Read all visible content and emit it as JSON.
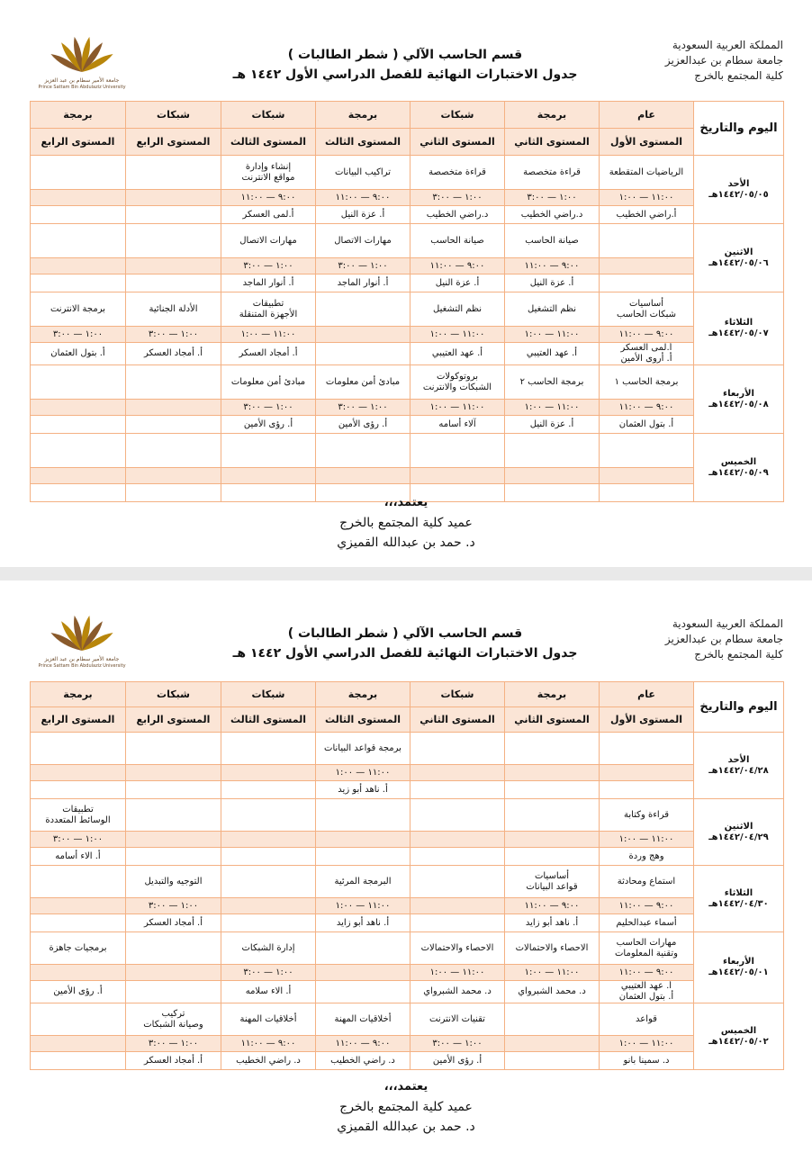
{
  "pages": [
    {
      "header": {
        "country": "المملكة العربية السعودية",
        "university": "جامعة سطام بن عبدالعزيز",
        "college": "كلية المجتمع بالخرج",
        "department": "قسم الحاسب الآلي ( شطر الطالبات )",
        "title": "جدول الاختبارات النهائية للفصل الدراسي الأول ١٤٤٢ هـ",
        "logo_ar": "جامعة الأمير سطام بن عبد العزيز",
        "logo_en": "Prince Sattam Bin Abdulaziz University"
      },
      "table": {
        "corner": "اليوم والتاريخ",
        "tracks": [
          "عام",
          "برمجة",
          "شبكات",
          "برمجة",
          "شبكات",
          "شبكات",
          "برمجة"
        ],
        "levels": [
          "المستوى الأول",
          "المستوى الثاني",
          "المستوى الثاني",
          "المستوى الثالث",
          "المستوى الثالث",
          "المستوى الرابع",
          "المستوى الرابع"
        ],
        "rows": [
          {
            "day": "الأحد",
            "date": "١٤٤٢/٠٥/٠٥هـ",
            "subjects": [
              "الرياضيات المتقطعة",
              "قراءة متخصصة",
              "قراءة متخصصة",
              "تراكيب البيانات",
              "إنشاء وإدارة\nمواقع الانترنت",
              null,
              null
            ],
            "times": [
              "١١:٠٠ — ١:٠٠",
              "١:٠٠ — ٣:٠٠",
              "١:٠٠ — ٣:٠٠",
              "٩:٠٠ — ١١:٠٠",
              "٩:٠٠ — ١١:٠٠",
              null,
              null
            ],
            "teachers": [
              "أ.راضي الخطيب",
              "د.راضي الخطيب",
              "د.راضي الخطيب",
              "أ. عزة النيل",
              "أ.لمى العسكر",
              null,
              null
            ]
          },
          {
            "day": "الاثنين",
            "date": "١٤٤٢/٠٥/٠٦هـ",
            "subjects": [
              null,
              "صيانة الحاسب",
              "صيانة الحاسب",
              "مهارات الاتصال",
              "مهارات الاتصال",
              null,
              null
            ],
            "times": [
              null,
              "٩:٠٠ — ١١:٠٠",
              "٩:٠٠ — ١١:٠٠",
              "١:٠٠ — ٣:٠٠",
              "١:٠٠ — ٣:٠٠",
              null,
              null
            ],
            "teachers": [
              null,
              "أ. عزة النيل",
              "أ. عزة النيل",
              "أ. أنوار الماجد",
              "أ. أنوار الماجد",
              null,
              null
            ]
          },
          {
            "day": "الثلاثاء",
            "date": "١٤٤٢/٠٥/٠٧هـ",
            "subjects": [
              "أساسيات\nشبكات الحاسب",
              "نظم التشغيل",
              "نظم التشغيل",
              null,
              "تطبيقات\nالأجهزة المتنقلة",
              "الأدلة الجنائية",
              "برمجة الانترنت"
            ],
            "times": [
              "٩:٠٠ — ١١:٠٠",
              "١١:٠٠ — ١:٠٠",
              "١١:٠٠ — ١:٠٠",
              null,
              "١١:٠٠ — ١:٠٠",
              "١:٠٠ — ٣:٠٠",
              "١:٠٠ — ٣:٠٠"
            ],
            "teachers": [
              "أ.لمى العسكر\nأ. أروى الأمين",
              "أ. عهد العتيبي",
              "أ. عهد العتيبي",
              null,
              "أ. أمجاد العسكر",
              "أ. أمجاد العسكر",
              "أ. بتول العثمان"
            ]
          },
          {
            "day": "الأربعاء",
            "date": "١٤٤٢/٠٥/٠٨هـ",
            "subjects": [
              "برمجة الحاسب ١",
              "برمجة الحاسب ٢",
              "بروتوكولات\nالشبكات والانترنت",
              "مبادئ أمن معلومات",
              "مبادئ أمن معلومات",
              null,
              null
            ],
            "times": [
              "٩:٠٠ — ١١:٠٠",
              "١١:٠٠ — ١:٠٠",
              "١١:٠٠ — ١:٠٠",
              "١:٠٠ — ٣:٠٠",
              "١:٠٠ — ٣:٠٠",
              null,
              null
            ],
            "teachers": [
              "أ. بتول العثمان",
              "أ. عزة النيل",
              "آلاء أسامه",
              "أ. رؤى الأمين",
              "أ. رؤى الأمين",
              null,
              null
            ]
          },
          {
            "day": "الخميس",
            "date": "١٤٤٢/٠٥/٠٩هـ",
            "subjects": [
              null,
              null,
              null,
              null,
              null,
              null,
              null
            ],
            "times": [
              null,
              null,
              null,
              null,
              null,
              null,
              null
            ],
            "teachers": [
              null,
              null,
              null,
              null,
              null,
              null,
              null
            ]
          }
        ]
      },
      "footer": {
        "approve": "يعتمد،،،",
        "dean": "عميد كلية المجتمع بالخرج",
        "name": "د. حمد بن عبدالله القميزي"
      }
    },
    {
      "header": {
        "country": "المملكة العربية السعودية",
        "university": "جامعة سطام بن عبدالعزيز",
        "college": "كلية المجتمع بالخرج",
        "department": "قسم الحاسب الآلي ( شطر الطالبات )",
        "title": "جدول الاختبارات النهائية للفصل الدراسي الأول ١٤٤٢ هـ",
        "logo_ar": "جامعة الأمير سطام بن عبد العزيز",
        "logo_en": "Prince Sattam Bin Abdulaziz University"
      },
      "table": {
        "corner": "اليوم والتاريخ",
        "tracks": [
          "عام",
          "برمجة",
          "شبكات",
          "برمجة",
          "شبكات",
          "شبكات",
          "برمجة"
        ],
        "levels": [
          "المستوى الأول",
          "المستوى الثاني",
          "المستوى الثاني",
          "المستوى الثالث",
          "المستوى الثالث",
          "المستوى الرابع",
          "المستوى الرابع"
        ],
        "rows": [
          {
            "day": "الأحد",
            "date": "١٤٤٢/٠٤/٢٨هـ",
            "subjects": [
              null,
              null,
              null,
              "برمجة قواعد البيانات",
              null,
              null,
              null
            ],
            "times": [
              null,
              null,
              null,
              "١١:٠٠ — ١:٠٠",
              null,
              null,
              null
            ],
            "teachers": [
              null,
              null,
              null,
              "أ. ناهد أبو زيد",
              null,
              null,
              null
            ]
          },
          {
            "day": "الاثنين",
            "date": "١٤٤٢/٠٤/٢٩هـ",
            "subjects": [
              "قراءة وكتابة",
              null,
              null,
              null,
              null,
              null,
              "تطبيقات\nالوسائط المتعددة"
            ],
            "times": [
              "١١:٠٠ — ١:٠٠",
              null,
              null,
              null,
              null,
              null,
              "١:٠٠ — ٣:٠٠"
            ],
            "teachers": [
              "وهج وردة",
              null,
              null,
              null,
              null,
              null,
              "أ. الاء أسامه"
            ]
          },
          {
            "day": "الثلاثاء",
            "date": "١٤٤٢/٠٤/٣٠هـ",
            "subjects": [
              "استماع ومحادثة",
              "أساسيات\nقواعد البيانات",
              null,
              "البرمجة المرئية",
              null,
              "التوجيه والتبديل",
              null
            ],
            "times": [
              "٩:٠٠ — ١١:٠٠",
              "٩:٠٠ — ١١:٠٠",
              null,
              "١١:٠٠ — ١:٠٠",
              null,
              "١:٠٠ — ٣:٠٠",
              null
            ],
            "teachers": [
              "أسماء عبدالحليم",
              "أ. ناهد أبو زايد",
              null,
              "أ. ناهد أبو زايد",
              null,
              "أ. أمجاد العسكر",
              null
            ]
          },
          {
            "day": "الأربعاء",
            "date": "١٤٤٢/٠٥/٠١هـ",
            "subjects": [
              "مهارات الحاسب\nوتقنية المعلومات",
              "الاحصاء والاحتمالات",
              "الاحصاء والاحتمالات",
              null,
              "إدارة الشبكات",
              null,
              "برمجيات جاهزة"
            ],
            "times": [
              "٩:٠٠ — ١١:٠٠",
              "١١:٠٠ — ١:٠٠",
              "١١:٠٠ — ١:٠٠",
              null,
              "١:٠٠ — ٣:٠٠",
              null,
              null
            ],
            "teachers": [
              "أ. عهد العتيبي\nأ. بتول العثمان",
              "د. محمد الشبرواي",
              "د. محمد الشبرواي",
              null,
              "أ. الاء سلامه",
              null,
              "أ. رؤى الأمين"
            ]
          },
          {
            "day": "الخميس",
            "date": "١٤٤٢/٠٥/٠٢هـ",
            "subjects": [
              "قواعد",
              null,
              "تقنيات الانترنت",
              "أخلاقيات المهنة",
              "أخلاقيات المهنة",
              "تركيب\nوصيانة الشبكات",
              null
            ],
            "times": [
              "١١:٠٠ — ١:٠٠",
              null,
              "١:٠٠ — ٣:٠٠",
              "٩:٠٠ — ١١:٠٠",
              "٩:٠٠ — ١١:٠٠",
              "١:٠٠ — ٣:٠٠",
              null
            ],
            "teachers": [
              "د. سمينا بانو",
              null,
              "أ. رؤى الأمين",
              "د. راضي الخطيب",
              "د. راضي الخطيب",
              "أ. أمجاد العسكر",
              null
            ]
          }
        ]
      },
      "footer": {
        "approve": "يعتمد،،،",
        "dean": "عميد كلية المجتمع بالخرج",
        "name": "د. حمد بن عبدالله القميزي"
      }
    }
  ]
}
